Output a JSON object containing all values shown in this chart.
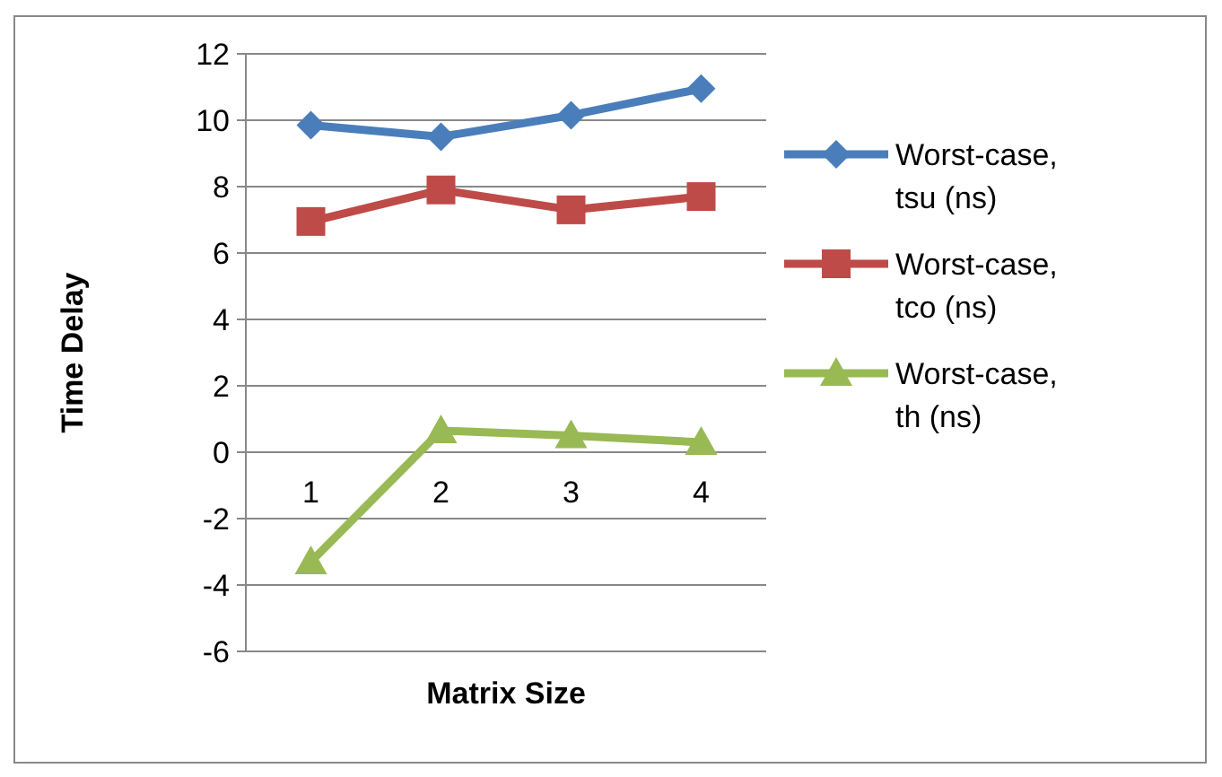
{
  "chart_data": {
    "type": "line",
    "xlabel": "Matrix Size",
    "ylabel": "Time Delay",
    "categories": [
      "1",
      "2",
      "3",
      "4"
    ],
    "series": [
      {
        "name": "Worst-case, tsu (ns)",
        "color": "#4a7ebb",
        "values": [
          9.85,
          9.5,
          10.15,
          10.95
        ],
        "marker": "diamond"
      },
      {
        "name": "Worst-case, tco (ns)",
        "color": "#be4b48",
        "values": [
          6.95,
          7.9,
          7.3,
          7.7
        ],
        "marker": "square"
      },
      {
        "name": "Worst-case, th (ns)",
        "color": "#98b954",
        "values": [
          -3.3,
          0.65,
          0.5,
          0.3
        ],
        "marker": "triangle"
      }
    ],
    "ylim": [
      -6,
      12
    ],
    "yticks": [
      -6,
      -4,
      -2,
      0,
      2,
      4,
      6,
      8,
      10,
      12
    ],
    "grid": "y",
    "legend": "right"
  }
}
